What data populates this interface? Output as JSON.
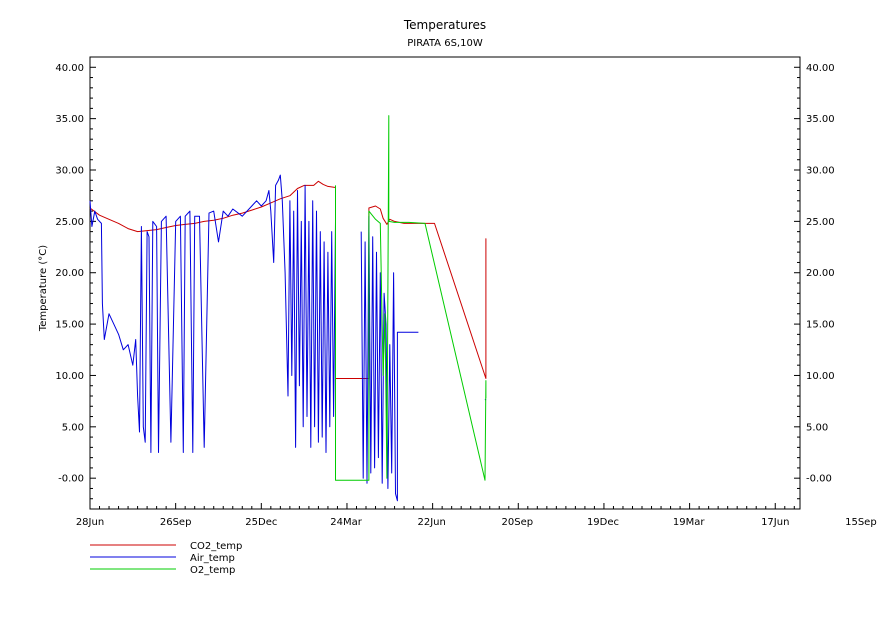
{
  "chart_data": {
    "type": "line",
    "title": "Temperatures",
    "subtitle": "PIRATA 6S,10W",
    "ylabel": "Temperature (°C)",
    "xlabel": "",
    "ylim": [
      -3,
      41
    ],
    "xlim": [
      0,
      746
    ],
    "grid": false,
    "legend_position": "bottom-left",
    "y_ticks": [
      -0.0,
      5.0,
      10.0,
      15.0,
      20.0,
      25.0,
      30.0,
      35.0,
      40.0
    ],
    "y_tick_labels": [
      "-0.00",
      "5.00",
      "10.00",
      "15.00",
      "20.00",
      "25.00",
      "30.00",
      "35.00",
      "40.00"
    ],
    "x_ticks": [
      0,
      90,
      180,
      270,
      360,
      450,
      540,
      630,
      720
    ],
    "x_tick_labels": [
      "28Jun",
      "26Sep",
      "25Dec",
      "24Mar",
      "22Jun",
      "20Sep",
      "19Dec",
      "19Mar",
      "17Jun",
      "15Sep"
    ],
    "x_tick_positions": [
      0,
      90,
      180,
      269,
      359,
      449,
      539,
      629,
      720,
      810
    ],
    "series": [
      {
        "name": "CO2_temp",
        "color": "#cc0000",
        "points": [
          [
            0,
            26.3
          ],
          [
            10,
            25.6
          ],
          [
            20,
            25.2
          ],
          [
            30,
            24.8
          ],
          [
            40,
            24.3
          ],
          [
            50,
            24.0
          ],
          [
            60,
            24.1
          ],
          [
            70,
            24.2
          ],
          [
            80,
            24.4
          ],
          [
            90,
            24.6
          ],
          [
            100,
            24.7
          ],
          [
            110,
            24.8
          ],
          [
            120,
            25.0
          ],
          [
            130,
            25.1
          ],
          [
            140,
            25.3
          ],
          [
            150,
            25.6
          ],
          [
            160,
            25.8
          ],
          [
            170,
            26.1
          ],
          [
            180,
            26.4
          ],
          [
            190,
            26.8
          ],
          [
            200,
            27.2
          ],
          [
            210,
            27.5
          ],
          [
            218,
            28.2
          ],
          [
            225,
            28.5
          ],
          [
            235,
            28.5
          ],
          [
            240,
            28.9
          ],
          [
            245,
            28.6
          ],
          [
            250,
            28.4
          ],
          [
            258,
            28.3
          ],
          [
            258,
            9.7
          ],
          [
            293,
            9.7
          ],
          [
            293,
            26.3
          ],
          [
            300,
            26.5
          ],
          [
            305,
            26.2
          ],
          [
            308,
            25.3
          ],
          [
            312,
            24.7
          ],
          [
            315,
            25.2
          ],
          [
            320,
            25.0
          ],
          [
            325,
            24.9
          ],
          [
            330,
            24.8
          ],
          [
            340,
            24.8
          ],
          [
            350,
            24.8
          ],
          [
            362,
            24.8
          ],
          [
            416,
            9.7
          ],
          [
            416,
            23.3
          ],
          [
            416,
            17.5
          ],
          [
            416,
            21.8
          ],
          [
            416,
            18.5
          ]
        ]
      },
      {
        "name": "Air_temp",
        "color": "#0000dd",
        "points": [
          [
            0,
            27.0
          ],
          [
            2,
            24.5
          ],
          [
            5,
            26.0
          ],
          [
            8,
            25.2
          ],
          [
            12,
            24.8
          ],
          [
            13,
            17.0
          ],
          [
            15,
            13.5
          ],
          [
            20,
            16.0
          ],
          [
            25,
            15.0
          ],
          [
            30,
            14.0
          ],
          [
            35,
            12.5
          ],
          [
            40,
            13.0
          ],
          [
            45,
            11.0
          ],
          [
            48,
            13.5
          ],
          [
            50,
            8.0
          ],
          [
            52,
            4.5
          ],
          [
            54,
            24.5
          ],
          [
            56,
            5.0
          ],
          [
            58,
            3.5
          ],
          [
            60,
            24.0
          ],
          [
            62,
            23.5
          ],
          [
            64,
            2.5
          ],
          [
            66,
            25.0
          ],
          [
            70,
            24.5
          ],
          [
            72,
            2.5
          ],
          [
            75,
            25.0
          ],
          [
            80,
            25.5
          ],
          [
            85,
            3.5
          ],
          [
            90,
            25.0
          ],
          [
            95,
            25.5
          ],
          [
            98,
            2.5
          ],
          [
            100,
            25.5
          ],
          [
            105,
            26.0
          ],
          [
            108,
            2.5
          ],
          [
            110,
            25.5
          ],
          [
            115,
            25.5
          ],
          [
            120,
            3.0
          ],
          [
            125,
            25.8
          ],
          [
            130,
            26.0
          ],
          [
            135,
            23.0
          ],
          [
            140,
            26.0
          ],
          [
            145,
            25.5
          ],
          [
            150,
            26.2
          ],
          [
            160,
            25.5
          ],
          [
            170,
            26.5
          ],
          [
            175,
            27.0
          ],
          [
            180,
            26.5
          ],
          [
            185,
            27.0
          ],
          [
            188,
            28.0
          ],
          [
            190,
            26.0
          ],
          [
            193,
            21.0
          ],
          [
            195,
            28.5
          ],
          [
            198,
            29.0
          ],
          [
            200,
            29.5
          ],
          [
            202,
            27.0
          ],
          [
            205,
            20.0
          ],
          [
            208,
            8.0
          ],
          [
            210,
            27.0
          ],
          [
            212,
            10.0
          ],
          [
            214,
            26.0
          ],
          [
            216,
            3.0
          ],
          [
            218,
            28.0
          ],
          [
            220,
            9.0
          ],
          [
            222,
            25.0
          ],
          [
            224,
            5.0
          ],
          [
            226,
            28.5
          ],
          [
            228,
            6.0
          ],
          [
            230,
            25.0
          ],
          [
            232,
            3.0
          ],
          [
            234,
            27.0
          ],
          [
            236,
            5.0
          ],
          [
            238,
            26.0
          ],
          [
            240,
            3.5
          ],
          [
            242,
            24.0
          ],
          [
            244,
            4.0
          ],
          [
            246,
            23.0
          ],
          [
            248,
            2.5
          ],
          [
            250,
            22.0
          ],
          [
            252,
            5.0
          ],
          [
            254,
            24.0
          ],
          [
            256,
            6.0
          ],
          [
            258,
            25.0
          ],
          [
            258,
            null
          ],
          [
            285,
            null
          ],
          [
            285,
            24.0
          ],
          [
            287,
            0.0
          ],
          [
            289,
            23.0
          ],
          [
            291,
            -0.5
          ],
          [
            293,
            25.5
          ],
          [
            295,
            0.5
          ],
          [
            297,
            23.5
          ],
          [
            299,
            1.0
          ],
          [
            301,
            22.0
          ],
          [
            303,
            2.0
          ],
          [
            305,
            20.0
          ],
          [
            307,
            -0.5
          ],
          [
            309,
            18.0
          ],
          [
            311,
            15.0
          ],
          [
            313,
            -1.0
          ],
          [
            315,
            13.0
          ],
          [
            317,
            0.5
          ],
          [
            319,
            20.0
          ],
          [
            321,
            -1.5
          ],
          [
            323,
            -2.2
          ],
          [
            323,
            14.2
          ],
          [
            330,
            14.2
          ],
          [
            345,
            14.2
          ],
          [
            345,
            null
          ],
          [
            415,
            null
          ],
          [
            415,
            7.6
          ],
          [
            416,
            7.7
          ]
        ]
      },
      {
        "name": "O2_temp",
        "color": "#00cc00",
        "points": [
          [
            258,
            28.5
          ],
          [
            258,
            -0.2
          ],
          [
            293,
            -0.2
          ],
          [
            293,
            26.0
          ],
          [
            300,
            25.2
          ],
          [
            305,
            24.8
          ],
          [
            308,
            10.0
          ],
          [
            310,
            16.0
          ],
          [
            312,
            0.0
          ],
          [
            314,
            35.3
          ],
          [
            314,
            25.0
          ],
          [
            320,
            24.9
          ],
          [
            335,
            24.9
          ],
          [
            352,
            24.8
          ],
          [
            415,
            -0.2
          ],
          [
            416,
            9.5
          ],
          [
            416,
            7.8
          ]
        ]
      }
    ]
  }
}
